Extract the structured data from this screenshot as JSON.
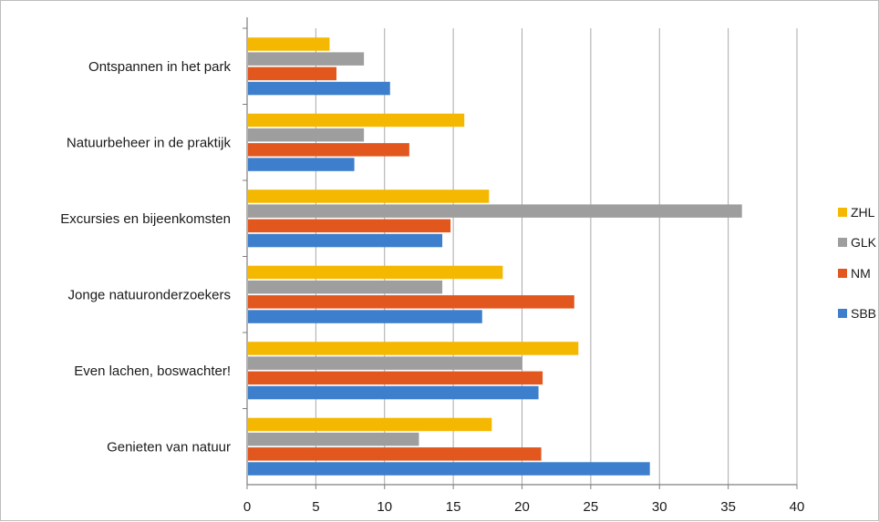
{
  "chart_data": {
    "type": "bar",
    "orientation": "horizontal",
    "title": "",
    "xlabel": "",
    "ylabel": "",
    "xlim": [
      0,
      40
    ],
    "x_ticks": [
      "0",
      "5",
      "10",
      "15",
      "20",
      "25",
      "30",
      "35",
      "40"
    ],
    "grid": true,
    "legend_position": "right",
    "categories": [
      "Ontspannen in het park",
      "Natuurbeheer in de praktijk",
      "Excursies en bijeenkomsten",
      "Jonge natuuronderzoekers",
      "Even lachen, boswachter!",
      "Genieten van natuur"
    ],
    "series": [
      {
        "name": "ZHL",
        "color": "#f5b800",
        "values": [
          6,
          15.8,
          17.6,
          18.6,
          24.1,
          17.8
        ]
      },
      {
        "name": "GLK",
        "color": "#9e9e9e",
        "values": [
          8.5,
          8.5,
          36,
          14.2,
          20,
          12.5
        ]
      },
      {
        "name": "NM",
        "color": "#e2571e",
        "values": [
          6.5,
          11.8,
          14.8,
          23.8,
          21.5,
          21.4
        ]
      },
      {
        "name": "SBB",
        "color": "#3d7fcc",
        "values": [
          10.4,
          7.8,
          14.2,
          17.1,
          21.2,
          29.3
        ]
      }
    ],
    "legend_order": [
      "ZHL",
      "GLK",
      "NM",
      "SBB"
    ]
  }
}
